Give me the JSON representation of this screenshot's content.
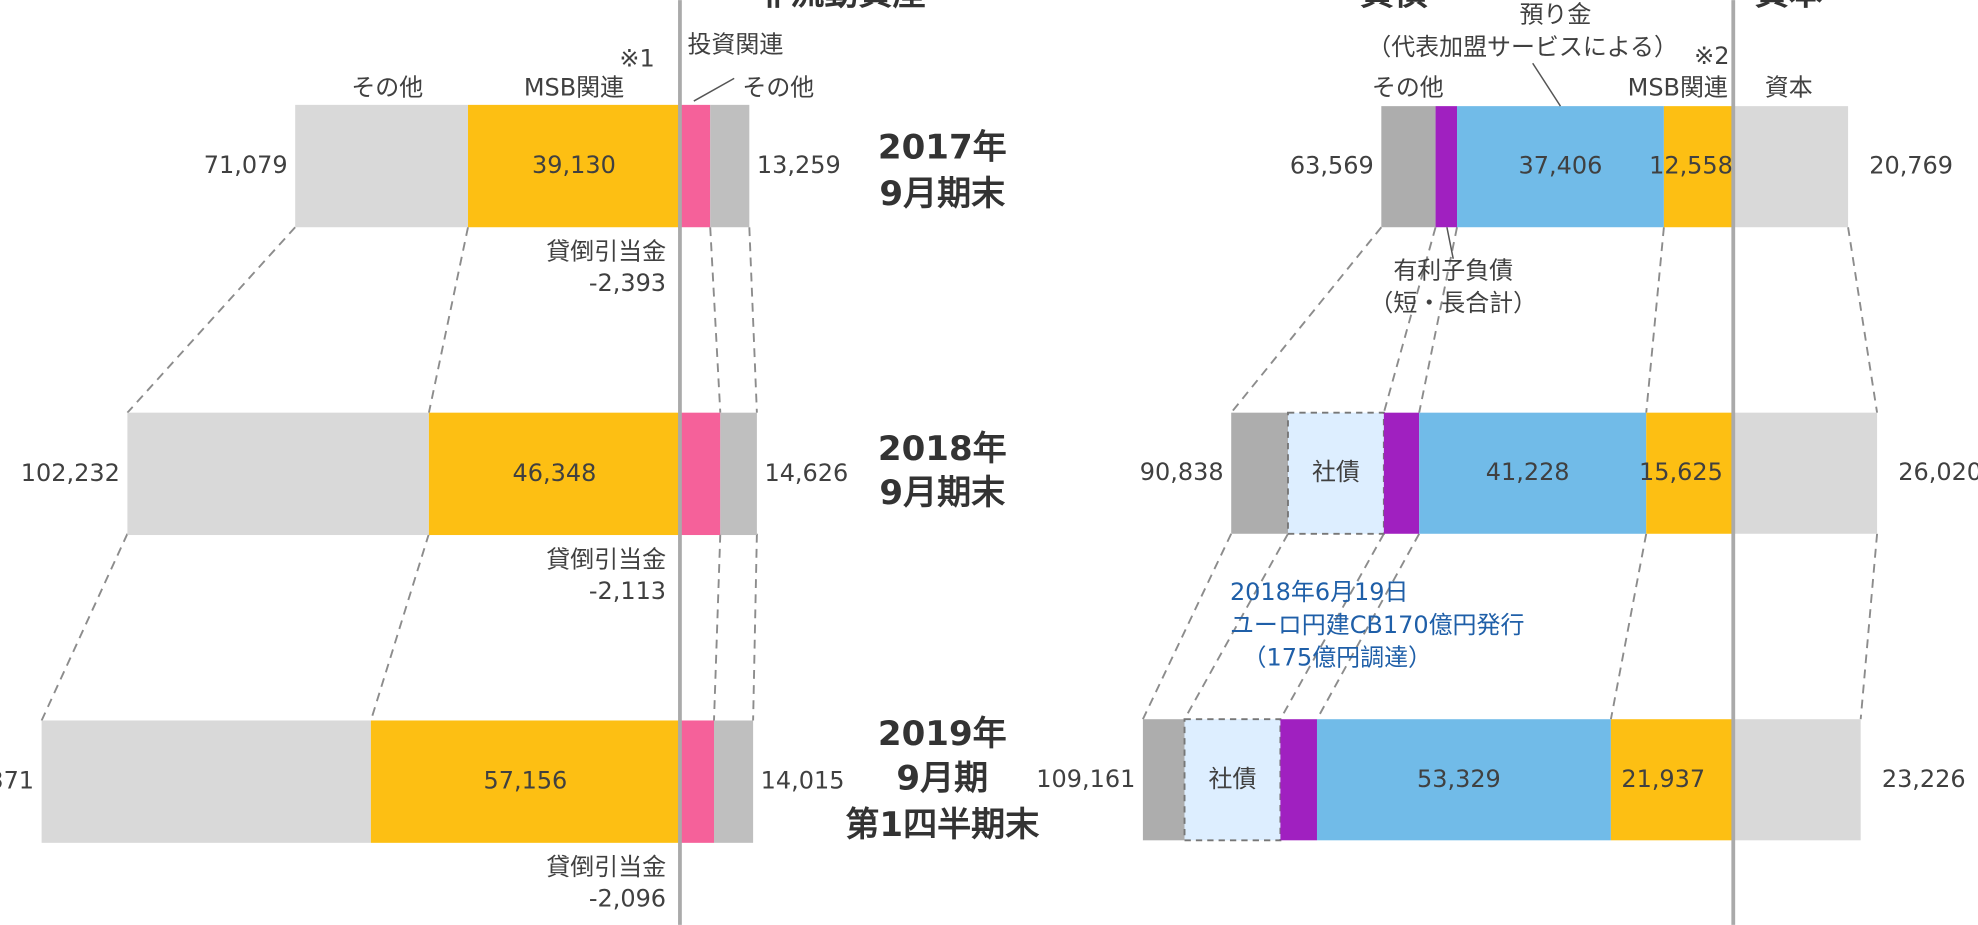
{
  "headers": {
    "left": "非流動資産",
    "liabilities": "負債",
    "equity": "資本"
  },
  "left": {
    "other1": "その他",
    "msb": "MSB関連",
    "note1": "※1",
    "invest": "投資関連",
    "other2": "その他",
    "rows": [
      {
        "total": "71,079",
        "msb": "39,130",
        "right": "13,259",
        "period": [
          "2017年",
          "9月期末"
        ],
        "allowance_label": "貸倒引当金",
        "allowance": "-2,393"
      },
      {
        "total": "102,232",
        "msb": "46,348",
        "right": "14,626",
        "period": [
          "2018年",
          "9月期末"
        ],
        "allowance_label": "貸倒引当金",
        "allowance": "-2,113"
      },
      {
        "total": "371",
        "msb": "57,156",
        "right": "14,015",
        "period": [
          "2019年",
          "9月期",
          "第1四半期末"
        ],
        "allowance_label": "貸倒引当金",
        "allowance": "-2,096"
      }
    ]
  },
  "right": {
    "deposit": "預り金",
    "deposit_note": "（代表加盟サービスによる）",
    "note2": "※2",
    "other": "その他",
    "msb": "MSB関連",
    "equity": "資本",
    "debt": "有利子負債",
    "debt_note": "（短・長合計）",
    "bond": "社債",
    "annotation": [
      "2018年6月19日",
      "ユーロ円建CB170億円発行",
      "（175億円調達）"
    ],
    "rows": [
      {
        "total": "63,569",
        "deposit": "37,406",
        "msb": "12,558",
        "equity": "20,769"
      },
      {
        "total": "90,838",
        "deposit": "41,228",
        "msb": "15,625",
        "equity": "26,020"
      },
      {
        "total": "109,161",
        "deposit": "53,329",
        "msb": "21,937",
        "equity": "23,226"
      }
    ]
  }
}
